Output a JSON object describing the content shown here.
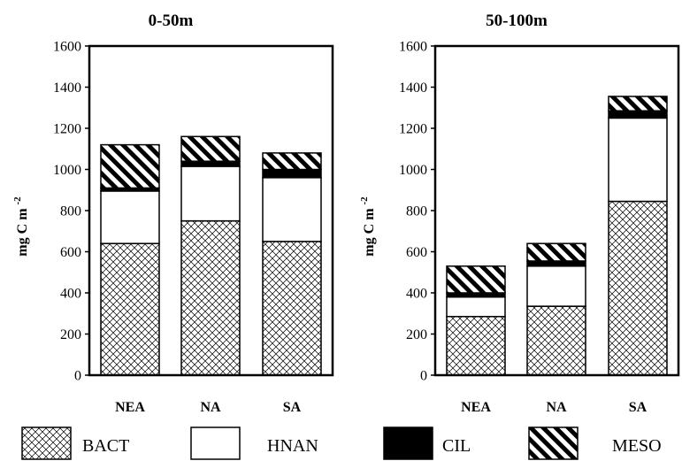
{
  "chart_data": [
    {
      "type": "bar",
      "stacked": true,
      "title": "0-50m",
      "ylabel": "mg C m",
      "ylabel_sup": "-2",
      "ylim": [
        0,
        1600
      ],
      "yticks": [
        0,
        200,
        400,
        600,
        800,
        1000,
        1200,
        1400,
        1600
      ],
      "categories": [
        "NEA",
        "NA",
        "SA"
      ],
      "series": [
        {
          "name": "BACT",
          "values": [
            640,
            750,
            650
          ]
        },
        {
          "name": "HNAN",
          "values": [
            255,
            265,
            310
          ]
        },
        {
          "name": "CIL",
          "values": [
            15,
            25,
            40
          ]
        },
        {
          "name": "MESO",
          "values": [
            210,
            120,
            80
          ]
        }
      ],
      "grid": false,
      "legend": "bottom"
    },
    {
      "type": "bar",
      "stacked": true,
      "title": "50-100m",
      "ylabel": "mg C m",
      "ylabel_sup": "-2",
      "ylim": [
        0,
        1600
      ],
      "yticks": [
        0,
        200,
        400,
        600,
        800,
        1000,
        1200,
        1400,
        1600
      ],
      "categories": [
        "NEA",
        "NA",
        "SA"
      ],
      "series": [
        {
          "name": "BACT",
          "values": [
            285,
            335,
            845
          ]
        },
        {
          "name": "HNAN",
          "values": [
            95,
            195,
            405
          ]
        },
        {
          "name": "CIL",
          "values": [
            20,
            25,
            35
          ]
        },
        {
          "name": "MESO",
          "values": [
            130,
            85,
            70
          ]
        }
      ],
      "grid": false,
      "legend": "bottom"
    }
  ],
  "legend": {
    "items": [
      {
        "label": "BACT",
        "pattern": "crosshatch"
      },
      {
        "label": "HNAN",
        "pattern": "white"
      },
      {
        "label": "CIL",
        "pattern": "black"
      },
      {
        "label": "MESO",
        "pattern": "diagonal"
      }
    ]
  },
  "colors": {
    "ink": "#000000",
    "background": "#ffffff"
  }
}
